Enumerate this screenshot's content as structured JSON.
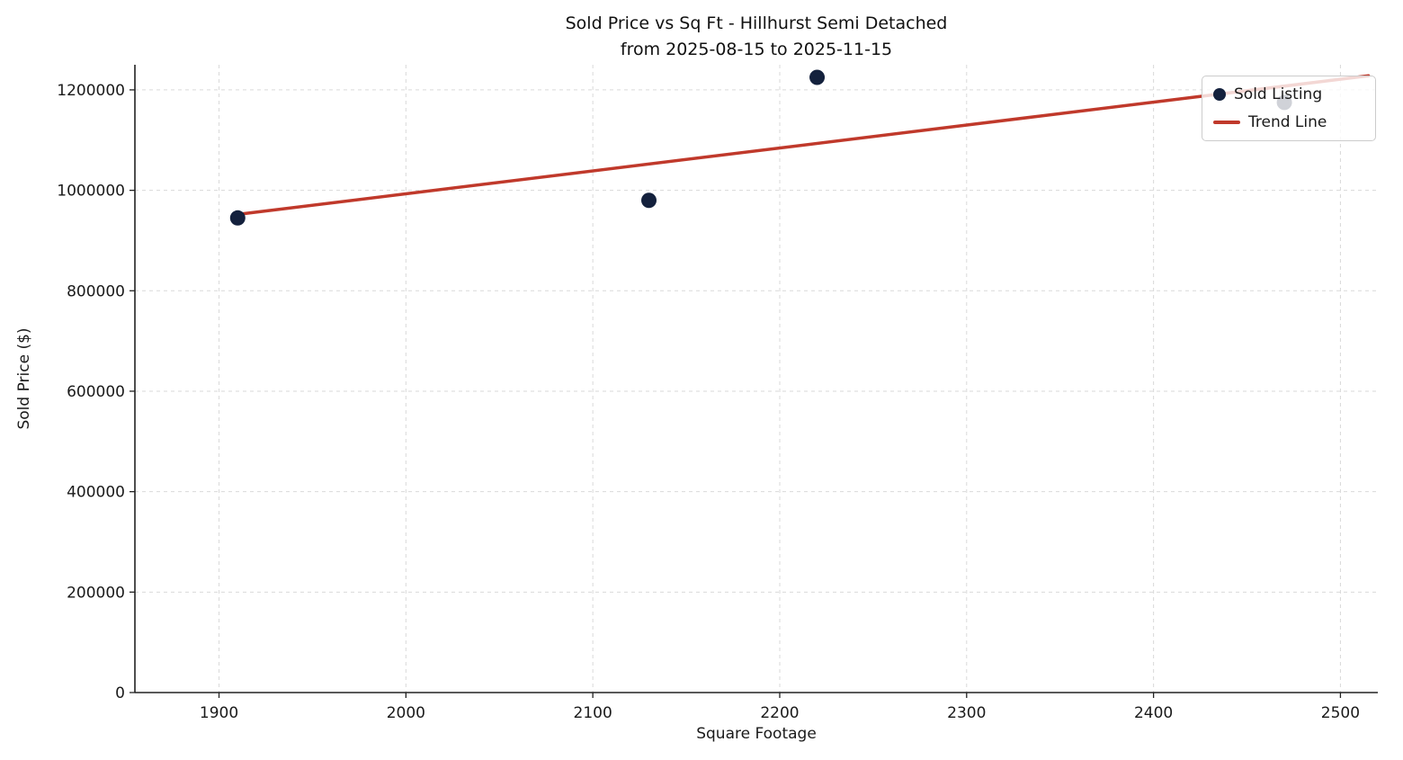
{
  "chart_data": {
    "type": "scatter",
    "title_line1": "Sold Price vs Sq Ft - Hillhurst Semi Detached",
    "title_line2": "from 2025-08-15 to 2025-11-15",
    "xlabel": "Square Footage",
    "ylabel": "Sold Price ($)",
    "xlim": [
      1855,
      2520
    ],
    "ylim": [
      0,
      1250000
    ],
    "xticks": [
      1900,
      2000,
      2100,
      2200,
      2300,
      2400,
      2500
    ],
    "yticks": [
      0,
      200000,
      400000,
      600000,
      800000,
      1000000,
      1200000
    ],
    "grid": true,
    "legend_position": "upper right",
    "series": [
      {
        "name": "Sold Listing",
        "type": "scatter",
        "color": "#14213d",
        "points": [
          {
            "sqft": 1910,
            "price": 945000
          },
          {
            "sqft": 2130,
            "price": 980000
          },
          {
            "sqft": 2220,
            "price": 1225000
          },
          {
            "sqft": 2470,
            "price": 1175000
          }
        ]
      },
      {
        "name": "Trend Line",
        "type": "line",
        "color": "#c0392b",
        "points": [
          {
            "sqft": 1910,
            "price": 952000
          },
          {
            "sqft": 2515,
            "price": 1228000
          }
        ]
      }
    ]
  },
  "colors": {
    "point": "#14213d",
    "trend": "#c0392b",
    "grid": "#d9d9d9",
    "spine": "#222222",
    "text": "#1a1a1a",
    "legend_border": "#cccccc"
  }
}
